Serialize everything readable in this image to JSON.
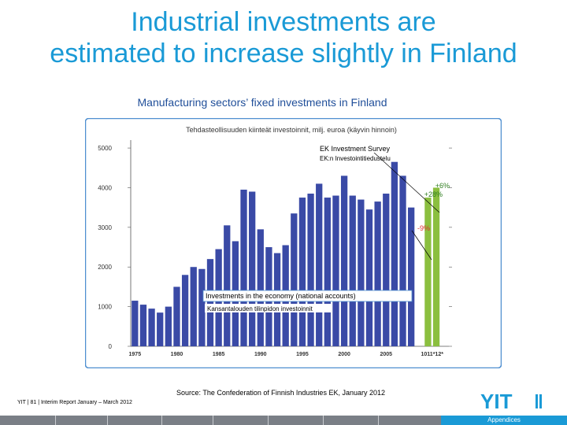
{
  "slide": {
    "title_line1": "Industrial investments are",
    "title_line2": "estimated to increase slightly in Finland",
    "subtitle": "Manufacturing sectors’ fixed investments in Finland",
    "source": "Source: The Confederation of Finnish Industries EK, January 2012",
    "footer": "YIT  |  81  |  Interim Report January – March 2012",
    "section_label": "Appendices"
  },
  "colors": {
    "title": "#1a9ad6",
    "subtitle": "#1f4e99",
    "bar_actual": "#3a4aa6",
    "bar_forecast": "#8bbf3f",
    "growth_label": "#2e7d1e",
    "decline_label": "#e03030",
    "logo": "#1a9ad6",
    "frame_border": "#4f8fd0"
  },
  "chart_data": {
    "type": "bar",
    "title": "Tehdasteollisuuden kiinteät investoinnit, milj. euroa (käyvin hinnoin)",
    "ylim": [
      0,
      5200
    ],
    "y_ticks": [
      0,
      1000,
      2000,
      3000,
      4000,
      5000
    ],
    "x_tick_labels": [
      "1975",
      "1980",
      "1985",
      "1990",
      "1995",
      "2000",
      "2005",
      "1011*12*"
    ],
    "grid": false,
    "categories": [
      "1975",
      "1976",
      "1977",
      "1978",
      "1979",
      "1980",
      "1981",
      "1982",
      "1983",
      "1984",
      "1985",
      "1986",
      "1987",
      "1988",
      "1989",
      "1990",
      "1991",
      "1992",
      "1993",
      "1994",
      "1995",
      "1996",
      "1997",
      "1998",
      "1999",
      "2000",
      "2001",
      "2002",
      "2003",
      "2004",
      "2005",
      "2006",
      "2007",
      "2008",
      "2009",
      "2010",
      "2011*",
      "2012*"
    ],
    "series": [
      {
        "values": [
          1150,
          1050,
          950,
          850,
          1000,
          1500,
          1800,
          2000,
          1950,
          2200,
          2450,
          3050,
          2650,
          3950,
          3900,
          2950,
          2500,
          2350,
          2550,
          3350,
          3750,
          3850,
          4100,
          3750,
          3800,
          4300,
          3800,
          3700,
          3450,
          3650,
          3850,
          4650,
          4300,
          3500,
          null,
          null,
          null,
          null
        ]
      },
      {
        "values": [
          null,
          null,
          null,
          null,
          null,
          null,
          null,
          null,
          null,
          null,
          null,
          null,
          null,
          null,
          null,
          null,
          null,
          null,
          null,
          null,
          null,
          null,
          null,
          null,
          null,
          null,
          null,
          null,
          null,
          null,
          null,
          null,
          null,
          null,
          null,
          3750,
          4000,
          null
        ]
      }
    ],
    "annotations": {
      "survey_label_en": "EK Investment Survey",
      "survey_label_fi": "EK:n Investointitiedustelu",
      "national_label_en": "Investments in the economy (national accounts)",
      "national_label_fi": "Kansantalouden tilinpidon investoinnit",
      "growth_1": "+6%",
      "growth_2": "+28%",
      "decline": "-9%"
    }
  }
}
